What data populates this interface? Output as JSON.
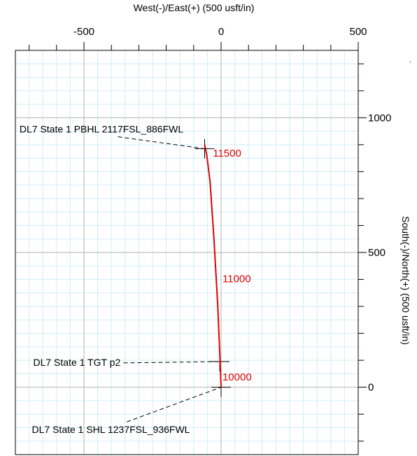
{
  "chart_data": {
    "type": "line",
    "xlabel": "West(-)/East(+) (500 usft/in)",
    "ylabel": "South(-)/North(+) (500 usft/in)",
    "xlim": [
      -750,
      500
    ],
    "ylim": [
      -250,
      1250
    ],
    "x_ticks": [
      -500,
      0,
      500
    ],
    "x_tick_labels": [
      "-500",
      "0",
      "500"
    ],
    "y_ticks": [
      0,
      500,
      1000
    ],
    "y_tick_labels": [
      "0",
      "500",
      "1000"
    ],
    "grid": true,
    "colors": {
      "grid_major": "#b3b3b3",
      "grid_minor": "#cfeef7",
      "path": "#e00000",
      "label": "#e00000",
      "axis": "#000000"
    },
    "series": [
      {
        "x": [
          0,
          -3,
          -12,
          -26,
          -40,
          -52,
          -58,
          -60
        ],
        "y": [
          0,
          80,
          300,
          550,
          760,
          860,
          890,
          900
        ]
      }
    ],
    "md_labels": [
      {
        "text": "10000",
        "x": 5,
        "y": 25
      },
      {
        "text": "11000",
        "x": 5,
        "y": 390
      },
      {
        "text": "11500",
        "x": -30,
        "y": 855
      }
    ],
    "targets": [
      {
        "text": "DL7 State 1 PBHL 2117FSL_886FWL",
        "x": -60,
        "y": 885,
        "label_x": -735,
        "label_y": 945,
        "cross": true
      },
      {
        "text": "DL7 State 1 TGT p2",
        "x": -5,
        "y": 95,
        "label_x": -685,
        "label_y": 80,
        "cross": true
      },
      {
        "text": "DL7 State 1 SHL 1237FSL_936FWL",
        "x": 0,
        "y": 0,
        "label_x": -690,
        "label_y": -170,
        "cross": true
      }
    ],
    "corner_mark": "'"
  }
}
